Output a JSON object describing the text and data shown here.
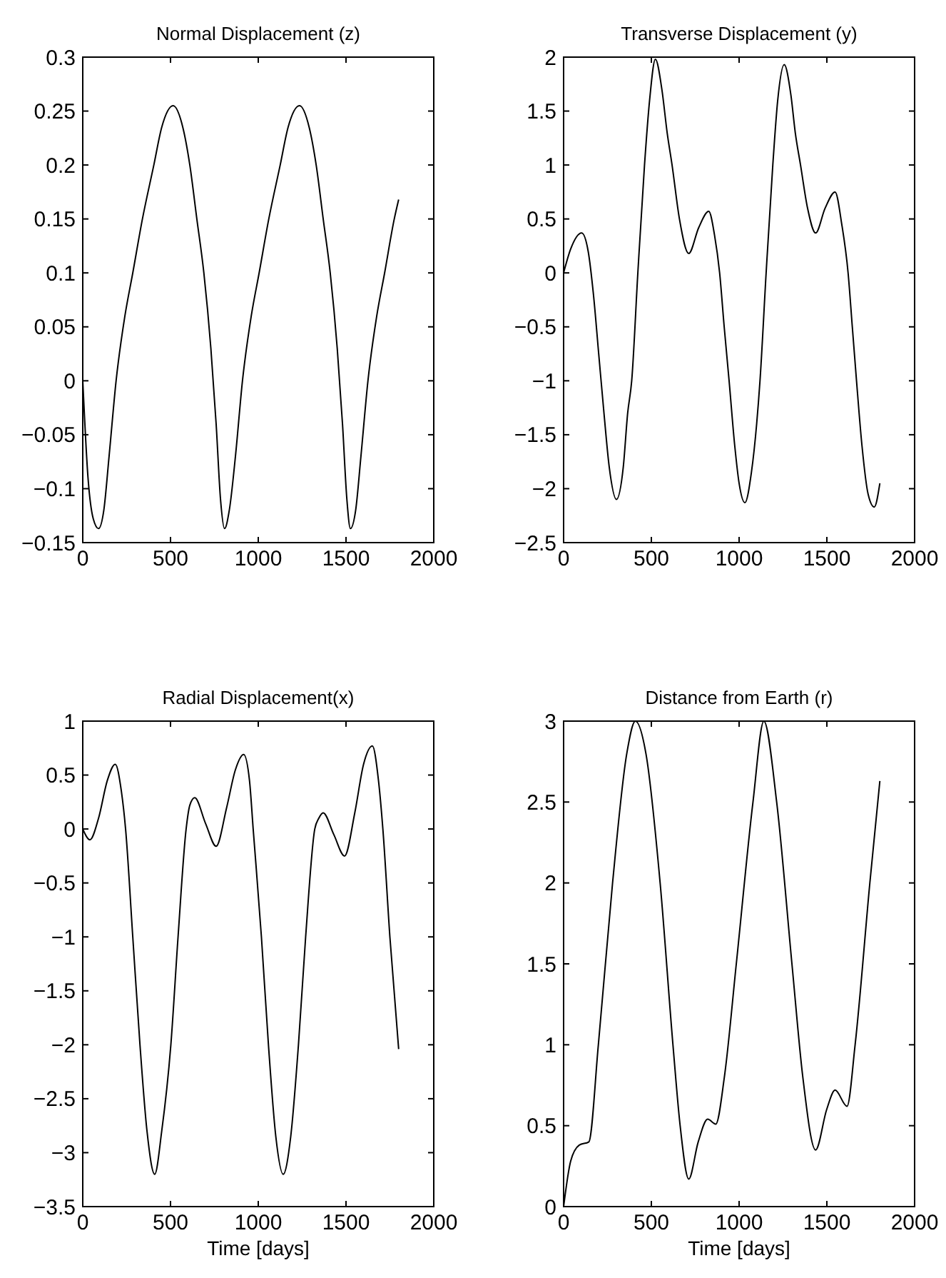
{
  "chart_data": [
    {
      "type": "line",
      "title": "Normal Displacement (z)",
      "xlim": [
        0,
        2000
      ],
      "xticks": [
        0,
        500,
        1000,
        1500,
        2000
      ],
      "ylim": [
        -0.15,
        0.3
      ],
      "yticks": [
        -0.15,
        -0.1,
        -0.05,
        0,
        0.05,
        0.1,
        0.15,
        0.2,
        0.25,
        0.3
      ],
      "marker": "none",
      "line_style": "solid",
      "series": [
        {
          "color": "#000000",
          "x": [
            0,
            30,
            60,
            90,
            120,
            150,
            190,
            240,
            285,
            340,
            405,
            450,
            515,
            570,
            610,
            650,
            690,
            730,
            760,
            785,
            808,
            835,
            870,
            910,
            960,
            1005,
            1060,
            1125,
            1170,
            1235,
            1290,
            1330,
            1370,
            1410,
            1450,
            1480,
            1505,
            1525,
            1555,
            1585,
            1625,
            1675,
            1720,
            1775,
            1800
          ],
          "values": [
            0,
            -0.09,
            -0.128,
            -0.137,
            -0.12,
            -0.07,
            0,
            0.06,
            0.1,
            0.15,
            0.2,
            0.235,
            0.255,
            0.235,
            0.2,
            0.15,
            0.1,
            0.03,
            -0.04,
            -0.11,
            -0.137,
            -0.12,
            -0.07,
            0,
            0.06,
            0.1,
            0.15,
            0.2,
            0.235,
            0.255,
            0.235,
            0.2,
            0.15,
            0.1,
            0.03,
            -0.04,
            -0.11,
            -0.137,
            -0.12,
            -0.07,
            0,
            0.06,
            0.1,
            0.15,
            0.168
          ]
        }
      ]
    },
    {
      "type": "line",
      "title": "Transverse Displacement (y)",
      "xlim": [
        0,
        2000
      ],
      "xticks": [
        0,
        500,
        1000,
        1500,
        2000
      ],
      "ylim": [
        -2.5,
        2
      ],
      "yticks": [
        -2.5,
        -2,
        -1.5,
        -1,
        -0.5,
        0,
        0.5,
        1,
        1.5,
        2
      ],
      "marker": "none",
      "line_style": "solid",
      "series": [
        {
          "color": "#000000",
          "x": [
            0,
            40,
            103,
            140,
            170,
            200,
            230,
            260,
            301,
            340,
            365,
            388,
            423,
            461,
            490,
            523,
            560,
            590,
            618,
            660,
            713,
            770,
            827,
            860,
            889,
            915,
            943,
            975,
            1000,
            1033,
            1070,
            1100,
            1119,
            1154,
            1192,
            1220,
            1257,
            1295,
            1320,
            1350,
            1390,
            1436,
            1490,
            1547,
            1585,
            1621,
            1645,
            1669,
            1700,
            1735,
            1770,
            1802
          ],
          "values": [
            0,
            0.22,
            0.37,
            0.2,
            -0.2,
            -0.75,
            -1.3,
            -1.8,
            -2.1,
            -1.8,
            -1.3,
            -1,
            0,
            1,
            1.6,
            1.98,
            1.7,
            1.3,
            1,
            0.5,
            0.18,
            0.42,
            0.57,
            0.35,
            0,
            -0.5,
            -1,
            -1.6,
            -1.95,
            -2.13,
            -1.85,
            -1.4,
            -1,
            0,
            1,
            1.6,
            1.93,
            1.65,
            1.3,
            1,
            0.6,
            0.37,
            0.6,
            0.75,
            0.45,
            0,
            -0.5,
            -1,
            -1.6,
            -2.05,
            -2.17,
            -1.95
          ]
        }
      ]
    },
    {
      "type": "line",
      "title": "Radial Displacement(x)",
      "xlabel": "Time [days]",
      "xlim": [
        0,
        2000
      ],
      "xticks": [
        0,
        500,
        1000,
        1500,
        2000
      ],
      "ylim": [
        -3.5,
        1
      ],
      "yticks": [
        -3.5,
        -3,
        -2.5,
        -2,
        -1.5,
        -1,
        -0.5,
        0,
        0.5,
        1
      ],
      "marker": "none",
      "line_style": "solid",
      "series": [
        {
          "color": "#000000",
          "x": [
            0,
            41,
            90,
            140,
            185,
            220,
            244,
            285,
            326,
            366,
            410,
            450,
            502,
            543,
            589,
            610,
            638,
            700,
            760,
            820,
            870,
            917,
            950,
            971,
            1018,
            1058,
            1100,
            1142,
            1185,
            1229,
            1270,
            1322,
            1345,
            1370,
            1430,
            1492,
            1550,
            1600,
            1650,
            1685,
            1710,
            1750,
            1800
          ],
          "values": [
            0,
            -0.1,
            0.1,
            0.45,
            0.6,
            0.35,
            0,
            -1,
            -2,
            -2.8,
            -3.2,
            -2.8,
            -2,
            -1,
            0,
            0.22,
            0.29,
            0.05,
            -0.16,
            0.2,
            0.55,
            0.69,
            0.45,
            0,
            -1,
            -2,
            -2.85,
            -3.2,
            -2.85,
            -2,
            -1,
            0,
            0.1,
            0.15,
            -0.05,
            -0.25,
            0.15,
            0.6,
            0.77,
            0.45,
            0,
            -1,
            -2.04
          ]
        }
      ]
    },
    {
      "type": "line",
      "title": "Distance from Earth (r)",
      "xlabel": "Time [days]",
      "xlim": [
        0,
        2000
      ],
      "xticks": [
        0,
        500,
        1000,
        1500,
        2000
      ],
      "ylim": [
        0,
        3
      ],
      "yticks": [
        0,
        0.5,
        1,
        1.5,
        2,
        2.5,
        3
      ],
      "marker": "none",
      "line_style": "solid",
      "series": [
        {
          "color": "#000000",
          "x": [
            0,
            40,
            89,
            144,
            198,
            279,
            360,
            409,
            469,
            550,
            623,
            664,
            713,
            767,
            821,
            867,
            916,
            984,
            1079,
            1141,
            1214,
            1301,
            1363,
            1436,
            1499,
            1547,
            1615,
            1661,
            1745,
            1802
          ],
          "values": [
            0,
            0.28,
            0.38,
            0.4,
            1,
            2,
            2.8,
            3,
            2.8,
            2,
            1,
            0.5,
            0.17,
            0.4,
            0.54,
            0.51,
            0.8,
            1.5,
            2.5,
            3,
            2.5,
            1.5,
            0.8,
            0.35,
            0.6,
            0.72,
            0.62,
            1,
            2,
            2.63
          ]
        }
      ]
    }
  ]
}
